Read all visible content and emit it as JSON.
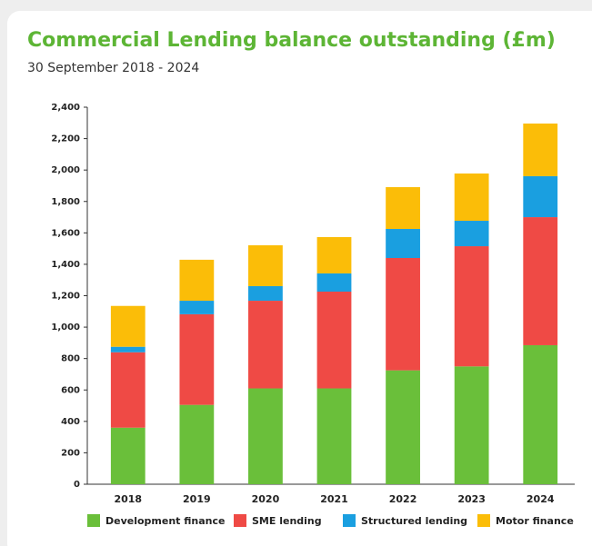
{
  "chart_data": {
    "type": "stacked-bar",
    "title": "Commercial Lending balance outstanding (£m)",
    "subtitle": "30 September 2018 - 2024",
    "categories": [
      "2018",
      "2019",
      "2020",
      "2021",
      "2022",
      "2023",
      "2024"
    ],
    "series": [
      {
        "name": "Development finance",
        "color": "#6abf3a",
        "values": [
          360,
          505,
          610,
          610,
          725,
          750,
          885
        ]
      },
      {
        "name": "SME lending",
        "color": "#ef4a45",
        "values": [
          480,
          577,
          558,
          616,
          715,
          765,
          815
        ]
      },
      {
        "name": "Structured lending",
        "color": "#1a9fe0",
        "values": [
          35,
          86,
          93,
          116,
          185,
          162,
          261
        ]
      },
      {
        "name": "Motor finance",
        "color": "#fbbd08",
        "values": [
          260,
          261,
          260,
          231,
          266,
          301,
          335
        ]
      }
    ],
    "ylim": [
      0,
      2400
    ],
    "yticks": [
      0,
      200,
      400,
      600,
      800,
      {
        "value": 1000,
        "label": "1,000"
      },
      {
        "value": 1200,
        "label": "1,200"
      },
      {
        "value": 1400,
        "label": "1,400"
      },
      {
        "value": 1600,
        "label": "1,600"
      },
      {
        "value": 1800,
        "label": "1,800"
      },
      {
        "value": 2000,
        "label": "2,000"
      },
      {
        "value": 2200,
        "label": "2,200"
      },
      {
        "value": 2400,
        "label": "2,400"
      }
    ],
    "grid": false,
    "legend": "bottom"
  }
}
